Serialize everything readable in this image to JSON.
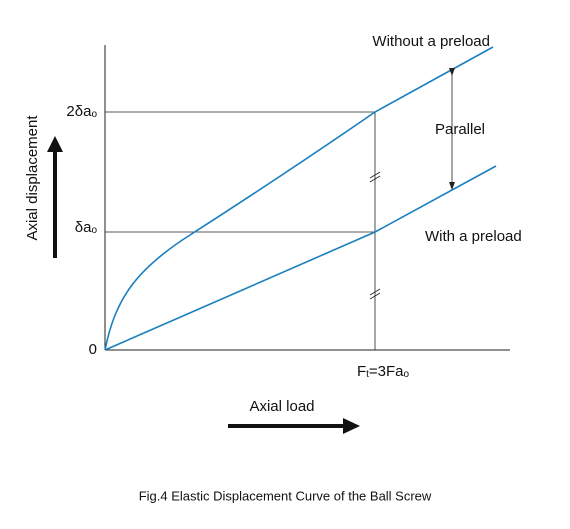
{
  "figure": {
    "y_axis_label": "Axial displacement",
    "x_axis_label": "Axial load",
    "origin_label": "0",
    "y_marks": [
      {
        "main": "2δa",
        "sub": "o"
      },
      {
        "main": "δa",
        "sub": "o"
      }
    ],
    "x_mark": {
      "main": "F",
      "sub": "t",
      "rest": "=3Fa",
      "sub2": "o"
    },
    "curves": [
      "Without a preload",
      "With a preload"
    ],
    "annotation": "Parallel",
    "caption": "Fig.4 Elastic Displacement Curve of the Ball Screw"
  }
}
